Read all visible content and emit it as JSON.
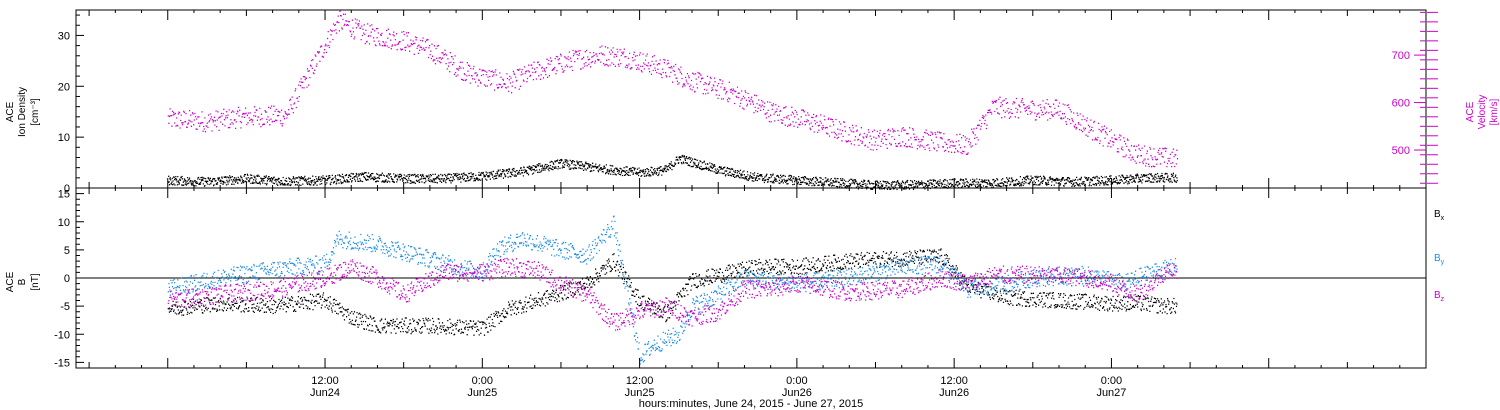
{
  "chart_data": [
    {
      "type": "scatter",
      "panel": "top",
      "ylabel_left": [
        "ACE",
        "Ion Density",
        "[cm⁻³]"
      ],
      "ylabel_right": [
        "ACE",
        "Velocity",
        "[km/s]"
      ],
      "ylim_left": [
        0,
        35
      ],
      "ylim_right": [
        420,
        795
      ],
      "yticks_left": [
        "0",
        "10",
        "20",
        "30"
      ],
      "yticks_right": [
        "500",
        "600",
        "700"
      ],
      "series": [
        {
          "name": "Ion Density",
          "axis": "left",
          "color": "#000000",
          "points_hours": [
            [
              0,
              1.5
            ],
            [
              3,
              1.2
            ],
            [
              6,
              1.8
            ],
            [
              9,
              1.3
            ],
            [
              12,
              1.5
            ],
            [
              15,
              2.2
            ],
            [
              18,
              1.8
            ],
            [
              21,
              1.8
            ],
            [
              24,
              2.3
            ],
            [
              27,
              3.2
            ],
            [
              30,
              4.8
            ],
            [
              33,
              3.8
            ],
            [
              36,
              3.0
            ],
            [
              38,
              3.5
            ],
            [
              39,
              5.8
            ],
            [
              42,
              3.5
            ],
            [
              45,
              2.0
            ],
            [
              48,
              1.5
            ],
            [
              51,
              1.0
            ],
            [
              54,
              0.5
            ],
            [
              57,
              0.6
            ],
            [
              60,
              0.9
            ],
            [
              63,
              1.0
            ],
            [
              66,
              1.5
            ],
            [
              69,
              1.2
            ],
            [
              72,
              1.5
            ],
            [
              75,
              2.0
            ],
            [
              77,
              2.0
            ]
          ]
        },
        {
          "name": "Velocity",
          "axis": "right",
          "color": "#cc00cc",
          "points_hours": [
            [
              0,
              565
            ],
            [
              3,
              560
            ],
            [
              6,
              570
            ],
            [
              9,
              572
            ],
            [
              13,
              772
            ],
            [
              15,
              745
            ],
            [
              18,
              730
            ],
            [
              20,
              710
            ],
            [
              23,
              660
            ],
            [
              26,
              640
            ],
            [
              28,
              665
            ],
            [
              31,
              690
            ],
            [
              33,
              700
            ],
            [
              35,
              695
            ],
            [
              38,
              670
            ],
            [
              40,
              645
            ],
            [
              43,
              620
            ],
            [
              46,
              580
            ],
            [
              49,
              560
            ],
            [
              52,
              535
            ],
            [
              54,
              520
            ],
            [
              56,
              530
            ],
            [
              59,
              515
            ],
            [
              61,
              510
            ],
            [
              63,
              590
            ],
            [
              66,
              585
            ],
            [
              68,
              585
            ],
            [
              71,
              535
            ],
            [
              74,
              490
            ],
            [
              77,
              480
            ]
          ]
        }
      ]
    },
    {
      "type": "scatter",
      "panel": "bottom",
      "ylabel_left": [
        "ACE",
        "B",
        "[nT]"
      ],
      "ylim": [
        -16,
        16
      ],
      "yticks": [
        "-15",
        "-10",
        "-5",
        "0",
        "5",
        "10",
        "15"
      ],
      "legend": [
        {
          "label": "Bx",
          "main": "B",
          "sub": "x",
          "color": "#000000"
        },
        {
          "label": "By",
          "main": "B",
          "sub": "y",
          "color": "#1e8ee8"
        },
        {
          "label": "Bz",
          "main": "B",
          "sub": "z",
          "color": "#cc00cc"
        }
      ],
      "series": [
        {
          "name": "Bx",
          "color": "#000000",
          "points_hours": [
            [
              0,
              -5.5
            ],
            [
              4,
              -4.5
            ],
            [
              8,
              -5.0
            ],
            [
              12,
              -4.0
            ],
            [
              14,
              -7.0
            ],
            [
              16,
              -8.5
            ],
            [
              20,
              -8.5
            ],
            [
              24,
              -9.0
            ],
            [
              26,
              -5.5
            ],
            [
              29,
              -3.5
            ],
            [
              32,
              -1.0
            ],
            [
              34,
              3.0
            ],
            [
              36,
              -4.0
            ],
            [
              38,
              -6.5
            ],
            [
              40,
              -0.5
            ],
            [
              43,
              1.0
            ],
            [
              45,
              2.0
            ],
            [
              48,
              2.0
            ],
            [
              52,
              3.0
            ],
            [
              56,
              3.5
            ],
            [
              59,
              3.8
            ],
            [
              61,
              -1.5
            ],
            [
              64,
              -3.5
            ],
            [
              68,
              -4.0
            ],
            [
              72,
              -4.5
            ],
            [
              74,
              -4.5
            ],
            [
              76,
              -5.0
            ],
            [
              77,
              -5.0
            ]
          ]
        },
        {
          "name": "By",
          "color": "#1e8ee8",
          "points_hours": [
            [
              0,
              -2.0
            ],
            [
              4,
              0.0
            ],
            [
              8,
              1.5
            ],
            [
              12,
              2.5
            ],
            [
              13,
              7.0
            ],
            [
              16,
              6.0
            ],
            [
              19,
              4.0
            ],
            [
              22,
              2.0
            ],
            [
              24,
              1.0
            ],
            [
              25,
              5.0
            ],
            [
              27,
              7.0
            ],
            [
              30,
              5.0
            ],
            [
              32,
              4.0
            ],
            [
              34,
              9.5
            ],
            [
              36,
              -14.0
            ],
            [
              37,
              -12.0
            ],
            [
              39,
              -10.0
            ],
            [
              40,
              -5.0
            ],
            [
              42,
              -3.0
            ],
            [
              44,
              0.0
            ],
            [
              48,
              -1.0
            ],
            [
              52,
              0.0
            ],
            [
              56,
              2.0
            ],
            [
              59,
              2.5
            ],
            [
              61,
              -2.0
            ],
            [
              63,
              -1.5
            ],
            [
              66,
              0.0
            ],
            [
              70,
              0.5
            ],
            [
              73,
              -1.0
            ],
            [
              75,
              1.0
            ],
            [
              77,
              2.0
            ]
          ]
        },
        {
          "name": "Bz",
          "color": "#cc00cc",
          "points_hours": [
            [
              0,
              -4.0
            ],
            [
              4,
              -3.0
            ],
            [
              8,
              -2.0
            ],
            [
              12,
              0.0
            ],
            [
              14,
              2.0
            ],
            [
              16,
              0.0
            ],
            [
              18,
              -3.0
            ],
            [
              21,
              1.0
            ],
            [
              24,
              1.0
            ],
            [
              26,
              2.0
            ],
            [
              28,
              1.5
            ],
            [
              30,
              -1.0
            ],
            [
              32,
              -3.0
            ],
            [
              34,
              -8.0
            ],
            [
              36,
              -6.0
            ],
            [
              38,
              -5.0
            ],
            [
              40,
              -7.0
            ],
            [
              42,
              -6.0
            ],
            [
              44,
              -2.0
            ],
            [
              46,
              -2.0
            ],
            [
              48,
              -1.0
            ],
            [
              52,
              -2.5
            ],
            [
              56,
              -2.0
            ],
            [
              59,
              0.0
            ],
            [
              61,
              -1.0
            ],
            [
              63,
              0.5
            ],
            [
              67,
              0.5
            ],
            [
              70,
              0.0
            ],
            [
              72,
              -1.0
            ],
            [
              74,
              -3.0
            ],
            [
              76,
              1.0
            ],
            [
              77,
              1.5
            ]
          ]
        }
      ]
    }
  ],
  "x_axis": {
    "xlim_hours": [
      -7,
      96
    ],
    "ticks": [
      {
        "hour": 12,
        "time": "12:00",
        "date": "Jun24"
      },
      {
        "hour": 24,
        "time": "0:00",
        "date": "Jun25"
      },
      {
        "hour": 36,
        "time": "12:00",
        "date": "Jun25"
      },
      {
        "hour": 48,
        "time": "0:00",
        "date": "Jun26"
      },
      {
        "hour": 60,
        "time": "12:00",
        "date": "Jun26"
      },
      {
        "hour": 72,
        "time": "0:00",
        "date": "Jun27"
      }
    ],
    "xlabel": "hours:minutes, June 24, 2015 - June 27, 2015"
  },
  "colors": {
    "density": "#000000",
    "velocity": "#cc00cc",
    "bx": "#000000",
    "by": "#1e8ee8",
    "bz": "#cc00cc"
  }
}
